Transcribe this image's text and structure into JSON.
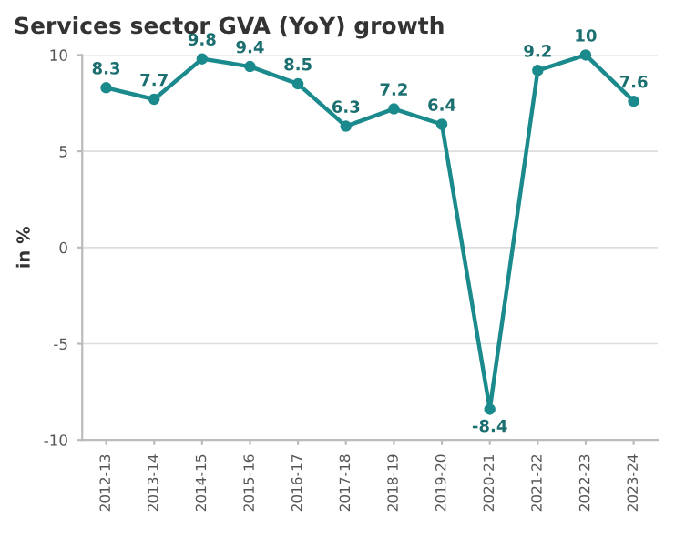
{
  "chart_data": {
    "type": "line",
    "title": "Services sector GVA (YoY) growth",
    "ylabel": "in %",
    "categories": [
      "2012-13",
      "2013-14",
      "2014-15",
      "2015-16",
      "2016-17",
      "2017-18",
      "2018-19",
      "2019-20",
      "2020-21",
      "2021-22",
      "2022-23",
      "2023-24"
    ],
    "series": [
      {
        "color": "#1b8a8c",
        "values": [
          8.3,
          7.7,
          9.8,
          9.4,
          8.5,
          6.3,
          7.2,
          6.4,
          -8.4,
          9.2,
          10,
          7.6
        ]
      }
    ],
    "ylim": [
      -10,
      10
    ],
    "yticks": [
      -10,
      -5,
      0,
      5,
      10
    ],
    "grid": "y",
    "data_labels": true,
    "marker": "circle",
    "line_style": "solid"
  }
}
